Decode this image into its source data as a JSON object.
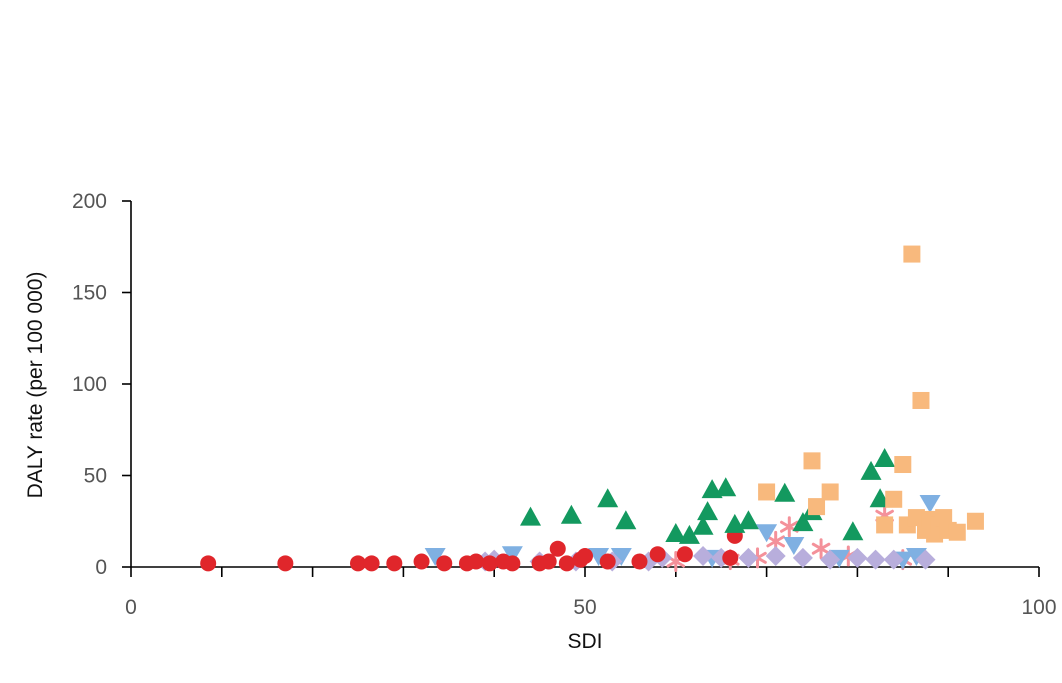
{
  "chart_data": {
    "type": "scatter",
    "title": "",
    "xlabel": "SDI",
    "ylabel": "DALY rate (per 100 000)",
    "xlim": [
      0,
      100
    ],
    "ylim": [
      0,
      200
    ],
    "x_ticks": [
      0,
      50,
      100
    ],
    "x_minor_ticks": [
      10,
      20,
      30,
      40,
      60,
      70,
      80,
      90
    ],
    "y_ticks": [
      0,
      50,
      100,
      150,
      200
    ],
    "x_tick_labels": [
      "0",
      "50",
      "100"
    ],
    "y_tick_labels": [
      "0",
      "50",
      "100",
      "150",
      "200"
    ],
    "grid": false,
    "legend": "none",
    "series": [
      {
        "marker": "circle",
        "color": "#e0262b",
        "x": [
          8.5,
          17,
          25,
          26.5,
          29,
          32,
          34.5,
          37,
          38,
          39.5,
          41,
          42,
          45,
          46,
          47,
          48,
          49.5,
          50,
          52.5,
          56,
          58,
          61,
          66,
          66.5
        ],
        "y": [
          2,
          2,
          2,
          2,
          2,
          3,
          2,
          2,
          3,
          2,
          3,
          2,
          2,
          3,
          10,
          2,
          4,
          6,
          3,
          3,
          7,
          7,
          5,
          17
        ]
      },
      {
        "marker": "triangle-up",
        "color": "#13995f",
        "x": [
          44,
          48.5,
          52.5,
          54.5,
          60,
          61.5,
          63,
          63.5,
          64,
          65.5,
          66.5,
          68,
          72,
          74,
          75,
          79.5,
          81.5,
          82.5,
          83
        ],
        "y": [
          27,
          28,
          37,
          25,
          18,
          17,
          22,
          30,
          42,
          43,
          23,
          25,
          40,
          24,
          30,
          19,
          52,
          37,
          59
        ]
      },
      {
        "marker": "square",
        "color": "#f8b97d",
        "x": [
          70,
          75,
          75.5,
          77,
          83,
          84,
          85,
          85.5,
          86,
          86.5,
          87,
          87.5,
          88,
          88.5,
          89,
          89.5,
          90,
          91,
          93
        ],
        "y": [
          41,
          58,
          33,
          41,
          23,
          37,
          56,
          23,
          171,
          27,
          91,
          20,
          26,
          18,
          23,
          27,
          20,
          19,
          25
        ]
      },
      {
        "marker": "triangle-down",
        "color": "#7fb0e2",
        "x": [
          33.5,
          42,
          51.5,
          54,
          64,
          70,
          73,
          78,
          85,
          86.5,
          88
        ],
        "y": [
          6,
          7,
          6,
          6,
          5,
          19,
          12,
          5,
          4,
          6,
          35
        ]
      },
      {
        "marker": "asterisk",
        "color": "#f4919a",
        "x": [
          60,
          66,
          69,
          71,
          72.5,
          76,
          79,
          83,
          85
        ],
        "y": [
          3,
          4,
          5,
          14,
          22,
          10,
          6,
          28,
          4
        ]
      },
      {
        "marker": "diamond",
        "color": "#b8aedc",
        "x": [
          39,
          40,
          45,
          49,
          53,
          57,
          58.5,
          63,
          65,
          68,
          71,
          74,
          77,
          80,
          82,
          84,
          87.5
        ],
        "y": [
          3,
          4,
          3,
          3,
          3,
          3,
          5,
          6,
          5,
          5,
          6,
          5,
          4,
          5,
          4,
          4,
          4
        ]
      }
    ]
  }
}
